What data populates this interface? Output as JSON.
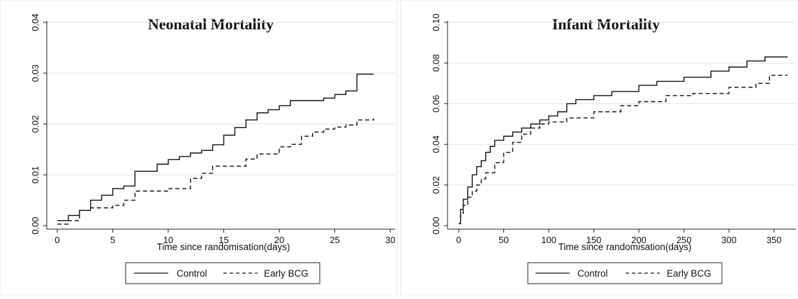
{
  "chart_data": [
    {
      "type": "line",
      "step": true,
      "title": "Neonatal Mortality",
      "xlabel": "Time since randomisation(days)",
      "ylabel": "",
      "xlim": [
        0,
        30
      ],
      "ylim": [
        0,
        0.04
      ],
      "xticks": [
        0,
        5,
        10,
        15,
        20,
        25,
        30
      ],
      "yticks": [
        0,
        0.01,
        0.02,
        0.03,
        0.04
      ],
      "xtick_labels": [
        "0",
        "5",
        "10",
        "15",
        "20",
        "25",
        "30"
      ],
      "ytick_labels": [
        "0.00",
        "0.01",
        "0.02",
        "0.03",
        "0.04"
      ],
      "grid": "horizontal",
      "legend": {
        "position": "bottom",
        "entries": [
          "Control",
          "Early BCG"
        ]
      },
      "series": [
        {
          "name": "Control",
          "style": "solid",
          "x": [
            0,
            1,
            2,
            3,
            4,
            5,
            6,
            7,
            9,
            10,
            11,
            12,
            13,
            14,
            15,
            16,
            17,
            18,
            19,
            20,
            21,
            23,
            24,
            25,
            26,
            27,
            28.5
          ],
          "y": [
            0.001,
            0.002,
            0.003,
            0.005,
            0.006,
            0.0073,
            0.0078,
            0.0107,
            0.0121,
            0.013,
            0.0136,
            0.0143,
            0.0148,
            0.0159,
            0.0178,
            0.0193,
            0.0208,
            0.0222,
            0.0228,
            0.0236,
            0.0246,
            0.0246,
            0.0251,
            0.0258,
            0.0265,
            0.0298,
            0.0298
          ]
        },
        {
          "name": "Early BCG",
          "style": "dashed",
          "x": [
            0,
            1,
            2,
            3,
            5,
            6,
            7,
            10,
            12,
            13,
            14,
            17,
            18,
            20,
            21,
            22,
            23,
            24,
            25,
            26,
            27,
            28.5
          ],
          "y": [
            0.0003,
            0.001,
            0.003,
            0.0035,
            0.004,
            0.005,
            0.0068,
            0.0073,
            0.0093,
            0.0103,
            0.0117,
            0.0131,
            0.0141,
            0.0155,
            0.016,
            0.0176,
            0.0184,
            0.019,
            0.0194,
            0.0198,
            0.0208,
            0.0211
          ]
        }
      ]
    },
    {
      "type": "line",
      "step": true,
      "title": "Infant Mortality",
      "xlabel": "Time since randomisation(days)",
      "ylabel": "",
      "xlim": [
        0,
        365
      ],
      "ylim": [
        0,
        0.1
      ],
      "xticks": [
        0,
        50,
        100,
        150,
        200,
        250,
        300,
        350
      ],
      "yticks": [
        0,
        0.02,
        0.04,
        0.06,
        0.08,
        0.1
      ],
      "xtick_labels": [
        "0",
        "50",
        "100",
        "150",
        "200",
        "250",
        "300",
        "350"
      ],
      "ytick_labels": [
        "0.00",
        "0.02",
        "0.04",
        "0.06",
        "0.08",
        "0.10"
      ],
      "grid": "horizontal",
      "legend": {
        "position": "bottom",
        "entries": [
          "Control",
          "Early BCG"
        ]
      },
      "series": [
        {
          "name": "Control",
          "style": "solid",
          "x": [
            0,
            2,
            5,
            10,
            15,
            20,
            25,
            30,
            35,
            40,
            50,
            60,
            70,
            80,
            90,
            100,
            110,
            120,
            130,
            150,
            170,
            200,
            220,
            250,
            280,
            300,
            320,
            340,
            365
          ],
          "y": [
            0.001,
            0.008,
            0.013,
            0.019,
            0.025,
            0.029,
            0.032,
            0.036,
            0.039,
            0.042,
            0.044,
            0.046,
            0.048,
            0.05,
            0.052,
            0.054,
            0.056,
            0.06,
            0.062,
            0.064,
            0.066,
            0.069,
            0.071,
            0.073,
            0.076,
            0.078,
            0.081,
            0.083,
            0.083
          ]
        },
        {
          "name": "Early BCG",
          "style": "dashed",
          "x": [
            0,
            2,
            5,
            10,
            15,
            20,
            25,
            30,
            40,
            50,
            60,
            70,
            80,
            90,
            100,
            120,
            150,
            180,
            200,
            230,
            260,
            300,
            330,
            345,
            365
          ],
          "y": [
            0.001,
            0.006,
            0.01,
            0.014,
            0.017,
            0.02,
            0.023,
            0.026,
            0.031,
            0.036,
            0.041,
            0.045,
            0.048,
            0.05,
            0.051,
            0.053,
            0.056,
            0.059,
            0.061,
            0.064,
            0.065,
            0.068,
            0.07,
            0.074,
            0.074
          ]
        }
      ]
    }
  ]
}
